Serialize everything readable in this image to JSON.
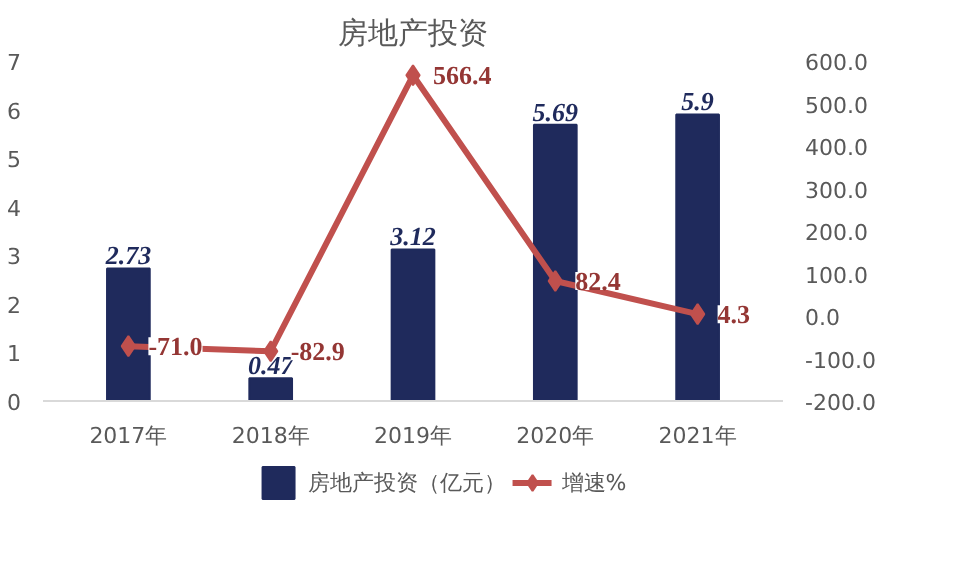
{
  "chart_data": {
    "type": "bar",
    "title": "房地产投资",
    "categories": [
      "2017年",
      "2018年",
      "2019年",
      "2020年",
      "2021年"
    ],
    "series": [
      {
        "name": "房地产投资（亿元）",
        "color": "#1f2a5c",
        "values": [
          2.73,
          0.47,
          3.12,
          5.69,
          5.9
        ],
        "value_labels": [
          "2.73",
          "0.47",
          "3.12",
          "5.69",
          "5.9"
        ]
      },
      {
        "name": "增速%",
        "type": "line",
        "axis": "y2",
        "color": "#c0504d",
        "values": [
          -71.0,
          -82.9,
          566.4,
          82.4,
          4.3
        ],
        "value_labels": [
          "-71.0",
          "-82.9",
          "566.4",
          "82.4",
          "4.3"
        ]
      }
    ],
    "ylim": [
      0,
      7
    ],
    "yticks": [
      0,
      1,
      2,
      3,
      4,
      5,
      6,
      7
    ],
    "y2lim": [
      -200,
      600
    ],
    "y2ticks": [
      {
        "value": -200,
        "label": "-200.0"
      },
      {
        "value": -100,
        "label": "-100.0"
      },
      {
        "value": 0,
        "label": "0.0"
      },
      {
        "value": 100,
        "label": "100.0"
      },
      {
        "value": 200,
        "label": "200.0"
      },
      {
        "value": 300,
        "label": "300.0"
      },
      {
        "value": 400,
        "label": "400.0"
      },
      {
        "value": 500,
        "label": "500.0"
      },
      {
        "value": 600,
        "label": "600.0"
      }
    ],
    "grid": false,
    "legend": "bottom",
    "marker": "diamond",
    "line_style": "solid"
  }
}
